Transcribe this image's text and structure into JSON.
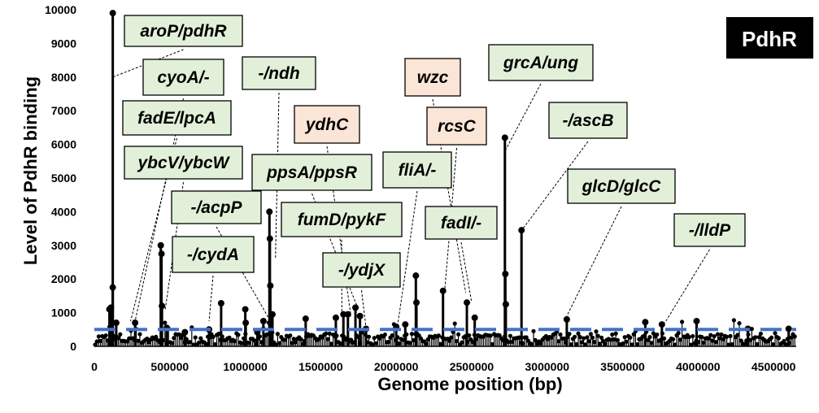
{
  "chart_data": {
    "type": "lollipop",
    "badge": "PdhR",
    "xlabel": "Genome position (bp)",
    "ylabel": "Level of PdhR binding",
    "xlim": [
      0,
      4650000
    ],
    "ylim": [
      0,
      10000
    ],
    "x_ticks": [
      "0",
      "500000",
      "1000000",
      "1500000",
      "2000000",
      "2500000",
      "3000000",
      "3500000",
      "4000000",
      "4500000"
    ],
    "y_ticks": [
      "0",
      "1000",
      "2000",
      "3000",
      "4000",
      "5000",
      "6000",
      "7000",
      "8000",
      "9000",
      "10000"
    ],
    "threshold": 500,
    "threshold_color": "#4472c4",
    "peaks": [
      {
        "x": 122000,
        "y": 9900
      },
      {
        "x": 122000,
        "y": 1750
      },
      {
        "x": 440000,
        "y": 3000
      },
      {
        "x": 445000,
        "y": 2750
      },
      {
        "x": 448000,
        "y": 1200
      },
      {
        "x": 1160000,
        "y": 4000
      },
      {
        "x": 1163000,
        "y": 3200
      },
      {
        "x": 1166000,
        "y": 1800
      },
      {
        "x": 2720000,
        "y": 6200
      },
      {
        "x": 2723000,
        "y": 2150
      },
      {
        "x": 2726000,
        "y": 1250
      },
      {
        "x": 2830000,
        "y": 3450
      },
      {
        "x": 2130000,
        "y": 2100
      },
      {
        "x": 2134000,
        "y": 1300
      },
      {
        "x": 2310000,
        "y": 1650
      },
      {
        "x": 2468000,
        "y": 1300
      },
      {
        "x": 2520000,
        "y": 850
      },
      {
        "x": 840000,
        "y": 1280
      },
      {
        "x": 1000000,
        "y": 1100
      },
      {
        "x": 1003000,
        "y": 700
      },
      {
        "x": 100000,
        "y": 1100
      },
      {
        "x": 110000,
        "y": 1150
      },
      {
        "x": 145000,
        "y": 700
      },
      {
        "x": 270000,
        "y": 700
      },
      {
        "x": 480000,
        "y": 550
      },
      {
        "x": 600000,
        "y": 420
      },
      {
        "x": 760000,
        "y": 500
      },
      {
        "x": 1080000,
        "y": 420
      },
      {
        "x": 1120000,
        "y": 750
      },
      {
        "x": 1180000,
        "y": 950
      },
      {
        "x": 1400000,
        "y": 820
      },
      {
        "x": 1600000,
        "y": 850
      },
      {
        "x": 1650000,
        "y": 950
      },
      {
        "x": 1680000,
        "y": 950
      },
      {
        "x": 1730000,
        "y": 1150
      },
      {
        "x": 1760000,
        "y": 900
      },
      {
        "x": 1800000,
        "y": 520
      },
      {
        "x": 2000000,
        "y": 580
      },
      {
        "x": 2060000,
        "y": 650
      },
      {
        "x": 3130000,
        "y": 800
      },
      {
        "x": 3650000,
        "y": 720
      },
      {
        "x": 3760000,
        "y": 650
      },
      {
        "x": 3990000,
        "y": 750
      },
      {
        "x": 4330000,
        "y": 520
      },
      {
        "x": 4600000,
        "y": 520
      }
    ],
    "annotations": [
      {
        "label": "aroP/pdhR",
        "color": "green",
        "bx": 153,
        "by": 19,
        "bw": 145,
        "bh": 38,
        "tx": 122000,
        "ty": 8000
      },
      {
        "label": "cyoA/-",
        "color": "green",
        "bx": 176,
        "by": 73,
        "bw": 99,
        "bh": 44,
        "tx": 270000,
        "ty": 750
      },
      {
        "label": "fadE/lpcA",
        "color": "green",
        "bx": 151,
        "by": 124,
        "bw": 133,
        "bh": 42,
        "tx": 240000,
        "ty": 750
      },
      {
        "label": "ybcV/ybcW",
        "color": "green",
        "bx": 153,
        "by": 180,
        "bw": 145,
        "bh": 40,
        "tx": 470000,
        "ty": 1100
      },
      {
        "label": "-/acpP",
        "color": "green",
        "bx": 211,
        "by": 235,
        "bw": 110,
        "bh": 40,
        "tx": 1160000,
        "ty": 800
      },
      {
        "label": "-/cydA",
        "color": "green",
        "bx": 212,
        "by": 291,
        "bw": 100,
        "bh": 44,
        "tx": 760000,
        "ty": 750
      },
      {
        "label": "-/ndh",
        "color": "green",
        "bx": 298,
        "by": 70,
        "bw": 90,
        "bh": 40,
        "tx": 1200000,
        "ty": 2600
      },
      {
        "label": "ydhC",
        "color": "pink",
        "bx": 362,
        "by": 130,
        "bw": 80,
        "bh": 46,
        "tx": 1700000,
        "ty": 900
      },
      {
        "label": "ppsA/ppsR",
        "color": "green",
        "bx": 310,
        "by": 190,
        "bw": 147,
        "bh": 44,
        "tx": 1740000,
        "ty": 1200
      },
      {
        "label": "fumD/pykF",
        "color": "green",
        "bx": 346,
        "by": 249,
        "bw": 148,
        "bh": 42,
        "tx": 1640000,
        "ty": 900
      },
      {
        "label": "-/ydjX",
        "color": "green",
        "bx": 397,
        "by": 311,
        "bw": 95,
        "bh": 42,
        "tx": 1800000,
        "ty": 550
      },
      {
        "label": "wzc",
        "color": "pink",
        "bx": 498,
        "by": 72,
        "bw": 68,
        "bh": 46,
        "tx": 2460000,
        "ty": 1600
      },
      {
        "label": "rcsC",
        "color": "pink",
        "bx": 525,
        "by": 132,
        "bw": 73,
        "bh": 46,
        "tx": 2320000,
        "ty": 1600
      },
      {
        "label": "fliA/-",
        "color": "green",
        "bx": 471,
        "by": 187,
        "bw": 84,
        "bh": 44,
        "tx": 2010000,
        "ty": 650
      },
      {
        "label": "fadI/-",
        "color": "green",
        "bx": 523,
        "by": 254,
        "bw": 88,
        "bh": 40,
        "tx": 2500000,
        "ty": 1300
      },
      {
        "label": "grcA/ung",
        "color": "green",
        "bx": 601,
        "by": 55,
        "bw": 128,
        "bh": 44,
        "tx": 2720000,
        "ty": 5800
      },
      {
        "label": "-/ascB",
        "color": "green",
        "bx": 675,
        "by": 126,
        "bw": 96,
        "bh": 44,
        "tx": 2840000,
        "ty": 3500
      },
      {
        "label": "glcD/glcC",
        "color": "green",
        "bx": 698,
        "by": 208,
        "bw": 132,
        "bh": 42,
        "tx": 3130000,
        "ty": 900
      },
      {
        "label": "-/lldP",
        "color": "green",
        "bx": 829,
        "by": 263,
        "bw": 87,
        "bh": 40,
        "tx": 3780000,
        "ty": 700
      }
    ]
  }
}
